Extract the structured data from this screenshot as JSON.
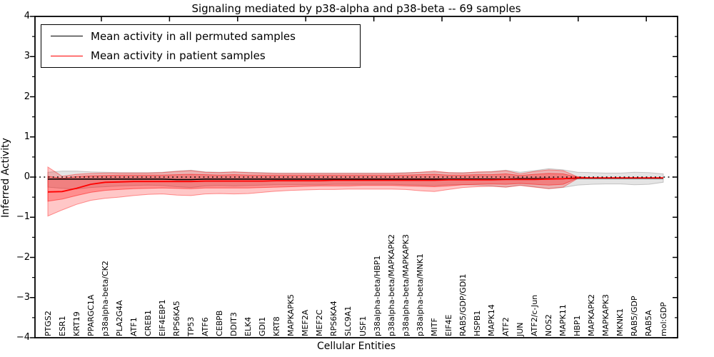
{
  "title": "Signaling mediated by p38-alpha and p38-beta -- 69 samples",
  "legend": {
    "items": [
      {
        "label": "Mean activity in all permuted samples",
        "color": "#000000"
      },
      {
        "label": "Mean activity in patient samples",
        "color": "#ff0000"
      }
    ]
  },
  "axes": {
    "xlabel": "Cellular Entities",
    "ylabel": "Inferred Activity",
    "ytick_labels": [
      "4",
      "3",
      "2",
      "1",
      "0",
      "−1",
      "−2",
      "−3",
      "−4"
    ],
    "ytick_values": [
      4,
      3,
      2,
      1,
      0,
      -1,
      -2,
      -3,
      -4
    ],
    "ylim": [
      -4,
      4
    ]
  },
  "chart_data": {
    "type": "line",
    "title": "Signaling mediated by p38-alpha and p38-beta -- 69 samples",
    "xlabel": "Cellular Entities",
    "ylabel": "Inferred Activity",
    "ylim": [
      -4,
      4
    ],
    "grid": false,
    "legend_position": "upper left",
    "zero_reference_line": "dotted",
    "categories": [
      "PTGS2",
      "ESR1",
      "KRT19",
      "PPARGC1A",
      "p38alpha-beta/CK2",
      "PLA2G4A",
      "ATF1",
      "CREB1",
      "EIF4EBP1",
      "RPS6KA5",
      "TP53",
      "ATF6",
      "CEBPB",
      "DDIT3",
      "ELK4",
      "GDI1",
      "KRT8",
      "MAPKAPK5",
      "MEF2A",
      "MEF2C",
      "RPS6KA4",
      "SLC9A1",
      "USF1",
      "p38alpha-beta/HBP1",
      "p38alpha-beta/MAPKAPK2",
      "p38alpha-beta/MAPKAPK3",
      "p38alpha-beta/MNK1",
      "MITF",
      "EIF4E",
      "RAB5/GDP/GDI1",
      "HSPB1",
      "MAPK14",
      "ATF2",
      "JUN",
      "ATF2/c-Jun",
      "NOS2",
      "MAPK11",
      "HBP1",
      "MAPKAPK2",
      "MAPKAPK3",
      "MKNK1",
      "RAB5/GDP",
      "RAB5A",
      "mol:GDP"
    ],
    "series": [
      {
        "name": "Mean activity in all permuted samples",
        "color": "#000000",
        "values": [
          -0.05,
          -0.05,
          -0.05,
          -0.05,
          -0.05,
          -0.05,
          -0.05,
          -0.05,
          -0.05,
          -0.06,
          -0.06,
          -0.05,
          -0.05,
          -0.05,
          -0.05,
          -0.05,
          -0.05,
          -0.05,
          -0.05,
          -0.05,
          -0.05,
          -0.05,
          -0.05,
          -0.05,
          -0.05,
          -0.05,
          -0.05,
          -0.05,
          -0.05,
          -0.05,
          -0.05,
          -0.05,
          -0.05,
          -0.04,
          -0.04,
          -0.04,
          -0.04,
          -0.03,
          -0.03,
          -0.03,
          -0.03,
          -0.03,
          -0.03,
          -0.03
        ]
      },
      {
        "name": "Mean activity in patient samples",
        "color": "#ff0000",
        "values": [
          -0.37,
          -0.36,
          -0.28,
          -0.18,
          -0.13,
          -0.12,
          -0.11,
          -0.11,
          -0.11,
          -0.11,
          -0.11,
          -0.1,
          -0.1,
          -0.1,
          -0.1,
          -0.1,
          -0.09,
          -0.09,
          -0.09,
          -0.09,
          -0.08,
          -0.08,
          -0.08,
          -0.08,
          -0.08,
          -0.08,
          -0.08,
          -0.08,
          -0.07,
          -0.07,
          -0.07,
          -0.07,
          -0.06,
          -0.06,
          -0.06,
          -0.05,
          -0.04,
          -0.02,
          -0.02,
          -0.02,
          -0.02,
          -0.02,
          -0.02,
          -0.02
        ]
      }
    ],
    "bands": [
      {
        "name": "permuted samples range",
        "color": "#787878",
        "opacity": 0.2,
        "upper": [
          0.12,
          0.15,
          0.15,
          0.13,
          0.12,
          0.11,
          0.11,
          0.11,
          0.12,
          0.15,
          0.17,
          0.13,
          0.12,
          0.13,
          0.12,
          0.11,
          0.1,
          0.1,
          0.1,
          0.1,
          0.1,
          0.1,
          0.1,
          0.1,
          0.1,
          0.11,
          0.12,
          0.13,
          0.11,
          0.11,
          0.12,
          0.14,
          0.17,
          0.12,
          0.16,
          0.21,
          0.18,
          0.12,
          0.11,
          0.1,
          0.1,
          0.12,
          0.11,
          0.08
        ],
        "lower": [
          -0.25,
          -0.28,
          -0.3,
          -0.26,
          -0.24,
          -0.22,
          -0.21,
          -0.2,
          -0.21,
          -0.24,
          -0.26,
          -0.22,
          -0.21,
          -0.22,
          -0.21,
          -0.2,
          -0.19,
          -0.19,
          -0.19,
          -0.19,
          -0.18,
          -0.18,
          -0.18,
          -0.18,
          -0.18,
          -0.19,
          -0.2,
          -0.21,
          -0.19,
          -0.19,
          -0.2,
          -0.22,
          -0.25,
          -0.2,
          -0.24,
          -0.29,
          -0.26,
          -0.2,
          -0.18,
          -0.17,
          -0.17,
          -0.19,
          -0.18,
          -0.13
        ]
      },
      {
        "name": "patient samples outer range",
        "color": "#ff0000",
        "opacity": 0.22,
        "upper": [
          0.25,
          0.02,
          0.07,
          0.09,
          0.1,
          0.1,
          0.1,
          0.1,
          0.11,
          0.14,
          0.16,
          0.12,
          0.11,
          0.13,
          0.11,
          0.1,
          0.09,
          0.09,
          0.09,
          0.09,
          0.09,
          0.09,
          0.09,
          0.09,
          0.09,
          0.1,
          0.12,
          0.15,
          0.11,
          0.1,
          0.13,
          0.13,
          0.16,
          0.08,
          0.14,
          0.18,
          0.16,
          0.01,
          -0.02,
          -0.02,
          -0.02,
          -0.02,
          -0.02,
          -0.02
        ],
        "lower": [
          -0.97,
          -0.82,
          -0.68,
          -0.58,
          -0.53,
          -0.5,
          -0.46,
          -0.43,
          -0.42,
          -0.45,
          -0.46,
          -0.42,
          -0.41,
          -0.42,
          -0.41,
          -0.38,
          -0.35,
          -0.33,
          -0.32,
          -0.31,
          -0.31,
          -0.3,
          -0.3,
          -0.3,
          -0.3,
          -0.31,
          -0.34,
          -0.36,
          -0.31,
          -0.26,
          -0.24,
          -0.23,
          -0.25,
          -0.21,
          -0.25,
          -0.29,
          -0.25,
          -0.04,
          -0.02,
          -0.02,
          -0.02,
          -0.02,
          -0.02,
          -0.02
        ]
      },
      {
        "name": "patient samples inner range",
        "color": "#ff0000",
        "opacity": 0.28,
        "upper": [
          0.02,
          -0.03,
          0.01,
          0.03,
          0.04,
          0.05,
          0.05,
          0.05,
          0.05,
          0.06,
          0.07,
          0.06,
          0.05,
          0.06,
          0.05,
          0.05,
          0.05,
          0.05,
          0.05,
          0.05,
          0.05,
          0.05,
          0.05,
          0.05,
          0.05,
          0.05,
          0.06,
          0.07,
          0.05,
          0.05,
          0.06,
          0.06,
          0.08,
          0.04,
          0.07,
          0.09,
          0.08,
          0.0,
          -0.02,
          -0.02,
          -0.02,
          -0.02,
          -0.02,
          -0.02
        ],
        "lower": [
          -0.6,
          -0.55,
          -0.46,
          -0.38,
          -0.33,
          -0.31,
          -0.29,
          -0.28,
          -0.27,
          -0.28,
          -0.29,
          -0.27,
          -0.27,
          -0.27,
          -0.27,
          -0.26,
          -0.25,
          -0.24,
          -0.23,
          -0.22,
          -0.22,
          -0.22,
          -0.21,
          -0.21,
          -0.21,
          -0.22,
          -0.23,
          -0.24,
          -0.22,
          -0.19,
          -0.18,
          -0.17,
          -0.18,
          -0.16,
          -0.18,
          -0.2,
          -0.18,
          -0.03,
          -0.02,
          -0.02,
          -0.02,
          -0.02,
          -0.02,
          -0.02
        ]
      }
    ]
  }
}
